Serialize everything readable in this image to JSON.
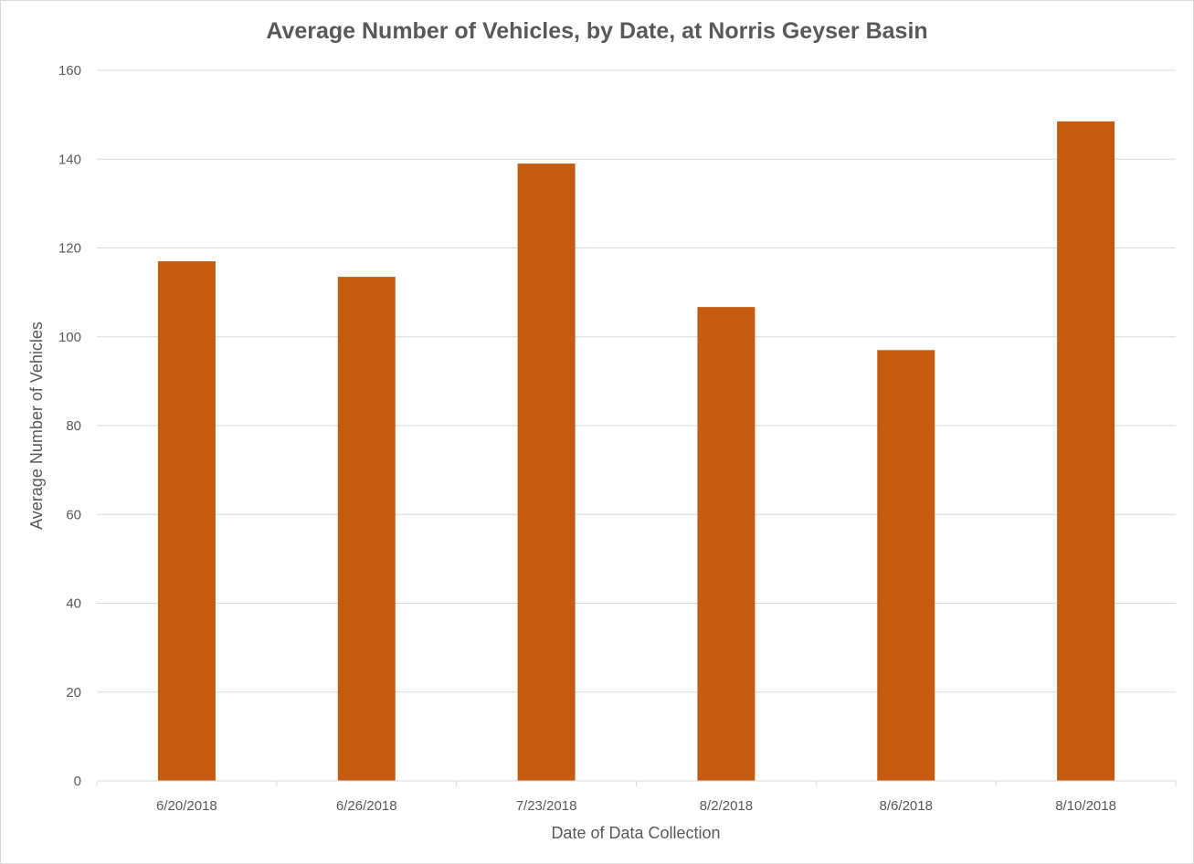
{
  "chart_data": {
    "type": "bar",
    "title": "Average Number of Vehicles, by Date, at Norris Geyser Basin",
    "xlabel": "Date of Data Collection",
    "ylabel": "Average Number of Vehicles",
    "categories": [
      "6/20/2018",
      "6/26/2018",
      "7/23/2018",
      "8/2/2018",
      "8/6/2018",
      "8/10/2018"
    ],
    "values": [
      117,
      113.5,
      139,
      106.7,
      97,
      148.5
    ],
    "ylim": [
      0,
      160
    ],
    "yticks": [
      "0",
      "20",
      "40",
      "60",
      "80",
      "100",
      "120",
      "140",
      "160"
    ],
    "grid": true,
    "legend": "none",
    "bar_color": "#C55A11"
  }
}
